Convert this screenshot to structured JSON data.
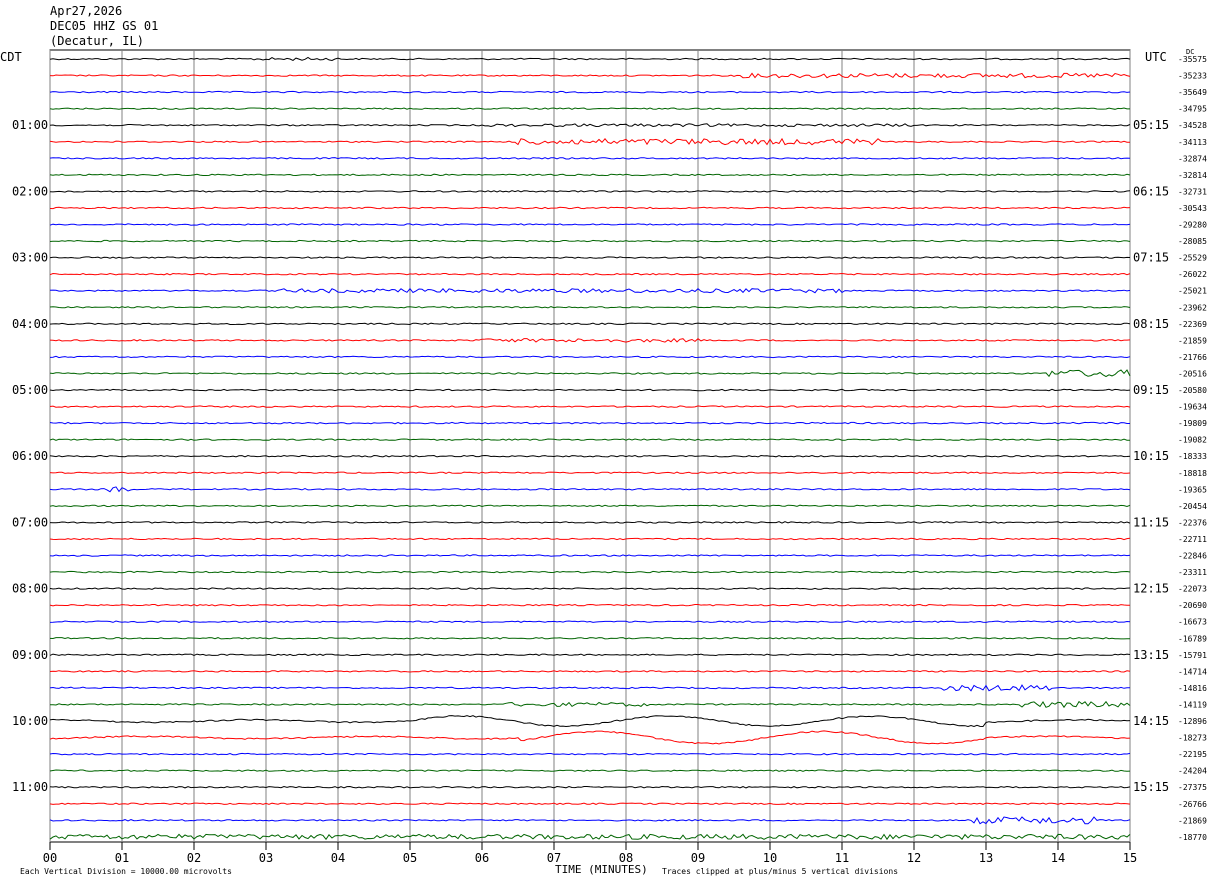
{
  "header": {
    "date": "Apr27,2026",
    "station": "DEC05 HHZ GS 01",
    "location": "(Decatur, IL)"
  },
  "left_zone": "CDT",
  "right_zone": "UTC",
  "dc_label": "DC",
  "footer": {
    "scale_note": "Each Vertical Division = 10000.00 microvolts",
    "xlabel": "TIME (MINUTES)",
    "clip_note": "Traces clipped at plus/minus 5 vertical divisions"
  },
  "colors": {
    "black": "#000000",
    "red": "#ff0000",
    "blue": "#0000ff",
    "green": "#006400",
    "grid": "#808080"
  },
  "chart_data": {
    "type": "line",
    "title": "",
    "xlabel": "TIME (MINUTES)",
    "xlim": [
      0,
      15
    ],
    "x_ticks": [
      "00",
      "01",
      "02",
      "03",
      "04",
      "05",
      "06",
      "07",
      "08",
      "09",
      "10",
      "11",
      "12",
      "13",
      "14",
      "15"
    ],
    "left_hour_labels": [
      "01:00",
      "02:00",
      "03:00",
      "04:00",
      "05:00",
      "06:00",
      "07:00",
      "08:00",
      "09:00",
      "10:00",
      "11:00"
    ],
    "right_hour_labels": [
      "05:15",
      "06:15",
      "07:15",
      "08:15",
      "09:15",
      "10:15",
      "11:15",
      "12:15",
      "13:15",
      "14:15",
      "15:15"
    ],
    "trace_colors": [
      "black",
      "red",
      "blue",
      "green"
    ],
    "dc_offsets": [
      "-35575",
      "-35233",
      "-35649",
      "-34795",
      "-34528",
      "-34113",
      "-32874",
      "-32814",
      "-32731",
      "-30543",
      "-29280",
      "-28085",
      "-25529",
      "-26022",
      "-25021",
      "-23962",
      "-22369",
      "-21859",
      "-21766",
      "-20516",
      "-20580",
      "-19634",
      "-19809",
      "-19082",
      "-18333",
      "-18818",
      "-19365",
      "-20454",
      "-22376",
      "-22711",
      "-22846",
      "-23311",
      "-22073",
      "-20690",
      "-16673",
      "-16789",
      "-15791",
      "-14714",
      "-14816",
      "-14119",
      "-12896",
      "-18273",
      "-22195",
      "-24204",
      "-27375",
      "-26766",
      "-21869",
      "-18770"
    ]
  }
}
